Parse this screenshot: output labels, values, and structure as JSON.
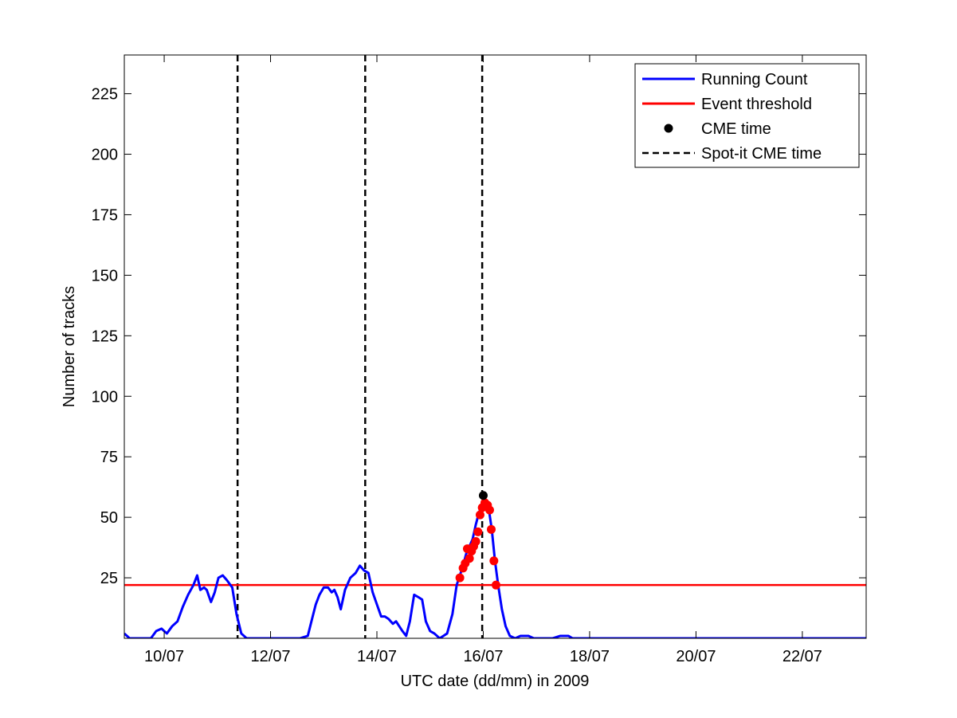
{
  "chart_data": {
    "type": "line",
    "xlabel": "UTC date (dd/mm) in 2009",
    "ylabel": "Number of tracks",
    "xlim": [
      9.25,
      23.2
    ],
    "ylim": [
      0,
      241
    ],
    "x_ticks": [
      {
        "value": 10,
        "label": "10/07"
      },
      {
        "value": 12,
        "label": "12/07"
      },
      {
        "value": 14,
        "label": "14/07"
      },
      {
        "value": 16,
        "label": "16/07"
      },
      {
        "value": 18,
        "label": "18/07"
      },
      {
        "value": 20,
        "label": "20/07"
      },
      {
        "value": 22,
        "label": "22/07"
      }
    ],
    "y_ticks": [
      {
        "value": 25,
        "label": "25"
      },
      {
        "value": 50,
        "label": "50"
      },
      {
        "value": 75,
        "label": "75"
      },
      {
        "value": 100,
        "label": "100"
      },
      {
        "value": 125,
        "label": "125"
      },
      {
        "value": 150,
        "label": "150"
      },
      {
        "value": 175,
        "label": "175"
      },
      {
        "value": 200,
        "label": "200"
      },
      {
        "value": 225,
        "label": "225"
      }
    ],
    "grid": false,
    "legend_position": "top-right",
    "legend": [
      {
        "label": "Running Count",
        "kind": "line",
        "color": "#0000ff"
      },
      {
        "label": "Event threshold",
        "kind": "line",
        "color": "#ff0000"
      },
      {
        "label": "CME time",
        "kind": "marker",
        "color": "#000000"
      },
      {
        "label": "Spot-it CME time",
        "kind": "dashed",
        "color": "#000000"
      }
    ],
    "series": [
      {
        "name": "Running Count",
        "color": "#0000ff",
        "points": [
          [
            9.25,
            2
          ],
          [
            9.35,
            0
          ],
          [
            9.6,
            0
          ],
          [
            9.75,
            0
          ],
          [
            9.85,
            3
          ],
          [
            9.95,
            4
          ],
          [
            10.05,
            2
          ],
          [
            10.15,
            5
          ],
          [
            10.25,
            7
          ],
          [
            10.35,
            13
          ],
          [
            10.45,
            18
          ],
          [
            10.55,
            22
          ],
          [
            10.62,
            26
          ],
          [
            10.68,
            20
          ],
          [
            10.75,
            21
          ],
          [
            10.8,
            20
          ],
          [
            10.88,
            15
          ],
          [
            10.95,
            19
          ],
          [
            11.02,
            25
          ],
          [
            11.1,
            26
          ],
          [
            11.18,
            24
          ],
          [
            11.28,
            21
          ],
          [
            11.36,
            10
          ],
          [
            11.45,
            2
          ],
          [
            11.55,
            0
          ],
          [
            11.7,
            0
          ],
          [
            12.0,
            0
          ],
          [
            12.3,
            0
          ],
          [
            12.55,
            0
          ],
          [
            12.7,
            1
          ],
          [
            12.78,
            8
          ],
          [
            12.85,
            14
          ],
          [
            12.92,
            18
          ],
          [
            13.0,
            21
          ],
          [
            13.08,
            21
          ],
          [
            13.15,
            19
          ],
          [
            13.2,
            20
          ],
          [
            13.26,
            17
          ],
          [
            13.32,
            12
          ],
          [
            13.4,
            20
          ],
          [
            13.5,
            25
          ],
          [
            13.6,
            27
          ],
          [
            13.68,
            30
          ],
          [
            13.76,
            28
          ],
          [
            13.84,
            27
          ],
          [
            13.92,
            19
          ],
          [
            14.0,
            14
          ],
          [
            14.08,
            9
          ],
          [
            14.15,
            9
          ],
          [
            14.22,
            8
          ],
          [
            14.3,
            6
          ],
          [
            14.36,
            7
          ],
          [
            14.42,
            5
          ],
          [
            14.48,
            3
          ],
          [
            14.55,
            1
          ],
          [
            14.62,
            7
          ],
          [
            14.7,
            18
          ],
          [
            14.78,
            17
          ],
          [
            14.85,
            16
          ],
          [
            14.92,
            7
          ],
          [
            15.0,
            3
          ],
          [
            15.08,
            2
          ],
          [
            15.18,
            0
          ],
          [
            15.25,
            1
          ],
          [
            15.32,
            2
          ],
          [
            15.42,
            10
          ],
          [
            15.5,
            22
          ],
          [
            15.56,
            26
          ],
          [
            15.62,
            30
          ],
          [
            15.68,
            35
          ],
          [
            15.74,
            38
          ],
          [
            15.8,
            41
          ],
          [
            15.86,
            47
          ],
          [
            15.92,
            52
          ],
          [
            15.98,
            55
          ],
          [
            16.04,
            57
          ],
          [
            16.1,
            54
          ],
          [
            16.16,
            45
          ],
          [
            16.22,
            32
          ],
          [
            16.28,
            22
          ],
          [
            16.35,
            12
          ],
          [
            16.42,
            5
          ],
          [
            16.5,
            1
          ],
          [
            16.6,
            0
          ],
          [
            16.7,
            1
          ],
          [
            16.85,
            1
          ],
          [
            16.95,
            0
          ],
          [
            17.3,
            0
          ],
          [
            17.45,
            1
          ],
          [
            17.6,
            1
          ],
          [
            17.68,
            0
          ],
          [
            18.5,
            0
          ],
          [
            20.0,
            0
          ],
          [
            22.0,
            0
          ],
          [
            23.2,
            0
          ]
        ]
      }
    ],
    "event_threshold": 22,
    "threshold_color": "#ff0000",
    "event_points": [
      [
        15.56,
        25
      ],
      [
        15.62,
        29
      ],
      [
        15.66,
        31
      ],
      [
        15.7,
        37
      ],
      [
        15.74,
        33
      ],
      [
        15.78,
        36
      ],
      [
        15.82,
        38
      ],
      [
        15.86,
        40
      ],
      [
        15.9,
        44
      ],
      [
        15.94,
        51
      ],
      [
        15.98,
        54
      ],
      [
        16.03,
        56
      ],
      [
        16.08,
        55
      ],
      [
        16.12,
        53
      ],
      [
        16.15,
        45
      ],
      [
        16.2,
        32
      ],
      [
        16.24,
        22
      ]
    ],
    "event_point_color": "#ff0000",
    "cme_time": [
      16.0,
      59
    ],
    "spot_it_cme_times": [
      11.38,
      13.78,
      15.98
    ]
  }
}
